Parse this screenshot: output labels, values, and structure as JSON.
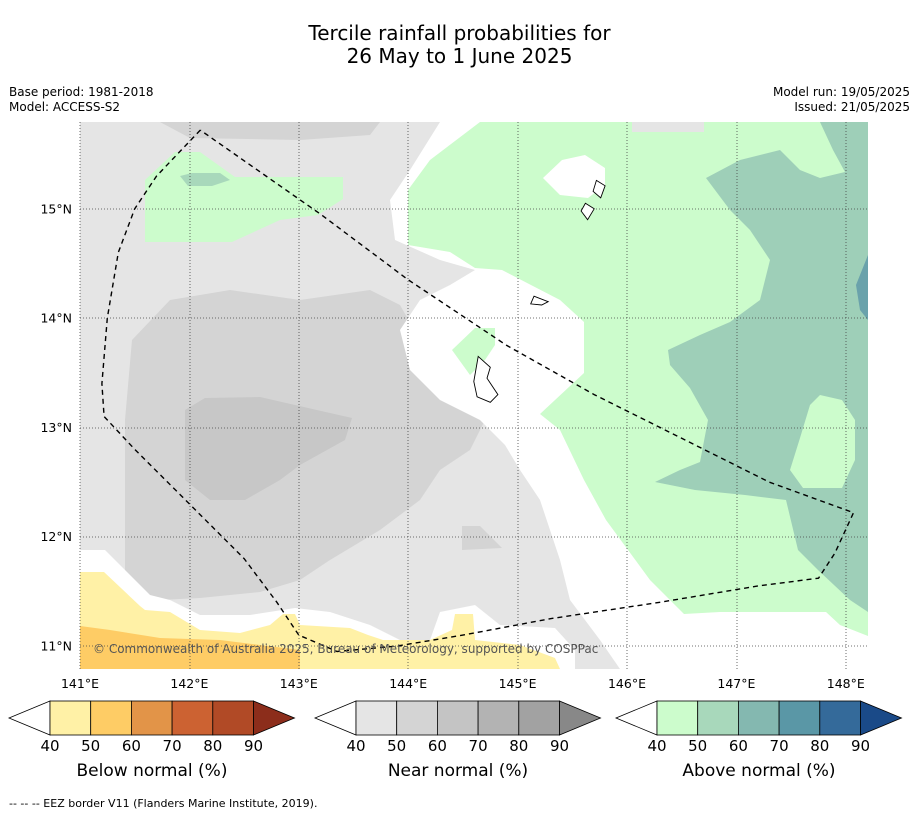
{
  "title_line1": "Tercile rainfall probabilities for",
  "title_line2": "26 May to 1 June 2025",
  "meta_left": {
    "base_period": "Base period: 1981-2018",
    "model": "Model: ACCESS-S2"
  },
  "meta_right": {
    "model_run": "Model run: 19/05/2025",
    "issued": "Issued: 21/05/2025"
  },
  "copyright": "© Commonwealth of Australia 2025, Bureau of Meteorology, supported by COSPPac",
  "map": {
    "lon_range": [
      141,
      148.2
    ],
    "lat_range": [
      10.8,
      15.8
    ],
    "lon_ticks": [
      141,
      142,
      143,
      144,
      145,
      146,
      147,
      148
    ],
    "lon_tick_labels": [
      "141°E",
      "142°E",
      "143°E",
      "144°E",
      "145°E",
      "146°E",
      "147°E",
      "148°E"
    ],
    "lat_ticks": [
      11,
      12,
      13,
      14,
      15
    ],
    "lat_tick_labels": [
      "11°N",
      "12°N",
      "13°N",
      "14°N",
      "15°N"
    ],
    "grid": true,
    "eez_border": [
      [
        142.1,
        15.72
      ],
      [
        141.7,
        15.3
      ],
      [
        141.5,
        15.0
      ],
      [
        141.35,
        14.6
      ],
      [
        141.25,
        14.0
      ],
      [
        141.2,
        13.4
      ],
      [
        141.22,
        13.1
      ],
      [
        141.5,
        12.8
      ],
      [
        142.0,
        12.3
      ],
      [
        142.5,
        11.8
      ],
      [
        142.8,
        11.4
      ],
      [
        143.0,
        11.1
      ],
      [
        143.35,
        10.95
      ],
      [
        143.9,
        11.0
      ],
      [
        144.5,
        11.1
      ],
      [
        145.3,
        11.25
      ],
      [
        146.3,
        11.4
      ],
      [
        147.2,
        11.55
      ],
      [
        147.75,
        11.62
      ],
      [
        147.9,
        11.85
      ],
      [
        148.07,
        12.22
      ],
      [
        147.3,
        12.5
      ],
      [
        146.5,
        12.9
      ],
      [
        145.7,
        13.3
      ],
      [
        144.9,
        13.75
      ],
      [
        144.0,
        14.35
      ],
      [
        143.2,
        14.95
      ],
      [
        142.1,
        15.72
      ]
    ],
    "islands": [
      [
        [
          144.64,
          13.65
        ],
        [
          144.75,
          13.55
        ],
        [
          144.72,
          13.45
        ],
        [
          144.82,
          13.3
        ],
        [
          144.75,
          13.23
        ],
        [
          144.63,
          13.28
        ],
        [
          144.6,
          13.42
        ],
        [
          144.64,
          13.65
        ]
      ],
      [
        [
          145.15,
          14.2
        ],
        [
          145.28,
          14.15
        ],
        [
          145.22,
          14.12
        ],
        [
          145.12,
          14.13
        ],
        [
          145.15,
          14.2
        ]
      ],
      [
        [
          145.62,
          15.05
        ],
        [
          145.7,
          15.0
        ],
        [
          145.64,
          14.9
        ],
        [
          145.58,
          14.98
        ],
        [
          145.62,
          15.05
        ]
      ],
      [
        [
          145.72,
          15.26
        ],
        [
          145.8,
          15.21
        ],
        [
          145.76,
          15.1
        ],
        [
          145.69,
          15.16
        ],
        [
          145.72,
          15.26
        ]
      ]
    ]
  },
  "colorbars": [
    {
      "label": "Below normal (%)",
      "ticks": [
        "40",
        "50",
        "60",
        "70",
        "80",
        "90"
      ],
      "colors": [
        "#ffffff",
        "#fff1a6",
        "#fecc65",
        "#e29448",
        "#cc6232",
        "#b14a26",
        "#8c2d1b"
      ]
    },
    {
      "label": "Near normal (%)",
      "ticks": [
        "40",
        "50",
        "60",
        "70",
        "80",
        "90"
      ],
      "colors": [
        "#ffffff",
        "#e5e5e5",
        "#d4d4d4",
        "#c4c4c4",
        "#b3b3b3",
        "#a2a2a2",
        "#888888"
      ]
    },
    {
      "label": "Above normal (%)",
      "ticks": [
        "40",
        "50",
        "60",
        "70",
        "80",
        "90"
      ],
      "colors": [
        "#ffffff",
        "#ccfccc",
        "#a8d8bb",
        "#84b8b0",
        "#5a97a6",
        "#346a9a",
        "#1a4a88"
      ]
    }
  ],
  "footnote": "--  --  -- EEZ border V11 (Flanders Marine Institute, 2019)."
}
